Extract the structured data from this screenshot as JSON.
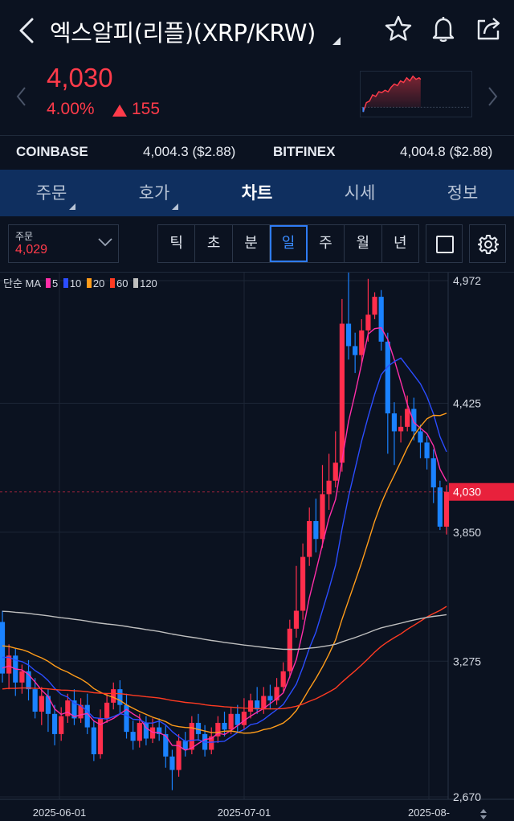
{
  "header": {
    "title": "엑스알피(리플)(XRP/KRW)",
    "icons": [
      "back-icon",
      "star-icon",
      "bell-icon",
      "share-icon"
    ]
  },
  "price": {
    "current": "4,030",
    "change_pct": "4.00%",
    "change_abs": "155",
    "color": "#ff3b4a"
  },
  "exchanges": [
    {
      "name": "COINBASE",
      "value": "4,004.3 ($2.88)"
    },
    {
      "name": "BITFINEX",
      "value": "4,004.8 ($2.88)"
    }
  ],
  "tabs": [
    {
      "label": "주문",
      "dropdown": true
    },
    {
      "label": "호가",
      "dropdown": true
    },
    {
      "label": "차트",
      "active": true
    },
    {
      "label": "시세"
    },
    {
      "label": "정보"
    }
  ],
  "toolbar": {
    "order_label": "주문",
    "order_value": "4,029",
    "periods": [
      "틱",
      "초",
      "분",
      "일",
      "주",
      "월",
      "년"
    ],
    "active_period": "일"
  },
  "chart_data": {
    "type": "candlestick",
    "legend_prefix": "단순 MA",
    "ma_series": [
      {
        "name": "5",
        "color": "#ff2ea8"
      },
      {
        "name": "10",
        "color": "#2b4dff"
      },
      {
        "name": "20",
        "color": "#ff9c1a"
      },
      {
        "name": "60",
        "color": "#ff3b22"
      },
      {
        "name": "120",
        "color": "#bfbfbf"
      }
    ],
    "y_ticks": [
      "4,972",
      "4,425",
      "3,850",
      "3,275",
      "2,670"
    ],
    "y_tick_values": [
      4972,
      4425,
      3850,
      3275,
      2670
    ],
    "x_ticks": [
      "2025-06-01",
      "2025-07-01",
      "2025-08-"
    ],
    "current_price_label": "4,030",
    "current_price": 4030,
    "ylim": [
      2670,
      5090
    ],
    "candles": [
      [
        3450,
        3220,
        3500,
        3180
      ],
      [
        3220,
        3300,
        3350,
        3150
      ],
      [
        3300,
        3180,
        3330,
        3120
      ],
      [
        3180,
        3230,
        3260,
        3130
      ],
      [
        3230,
        3150,
        3280,
        3100
      ],
      [
        3150,
        3050,
        3200,
        3020
      ],
      [
        3050,
        3120,
        3160,
        2990
      ],
      [
        3120,
        3040,
        3150,
        2960
      ],
      [
        3040,
        2950,
        3080,
        2900
      ],
      [
        2950,
        3030,
        3070,
        2920
      ],
      [
        3030,
        3100,
        3130,
        3000
      ],
      [
        3100,
        3020,
        3150,
        2990
      ],
      [
        3020,
        3080,
        3110,
        3000
      ],
      [
        3080,
        2980,
        3130,
        2950
      ],
      [
        2980,
        2860,
        3010,
        2830
      ],
      [
        2860,
        3020,
        3060,
        2840
      ],
      [
        3020,
        3090,
        3130,
        3000
      ],
      [
        3090,
        3150,
        3180,
        3060
      ],
      [
        3150,
        3080,
        3190,
        3040
      ],
      [
        3080,
        2960,
        3130,
        2930
      ],
      [
        2960,
        2920,
        3010,
        2880
      ],
      [
        2920,
        3000,
        3040,
        2890
      ],
      [
        3000,
        2930,
        3030,
        2900
      ],
      [
        2930,
        2980,
        3020,
        2910
      ],
      [
        2980,
        2950,
        3020,
        2920
      ],
      [
        2950,
        2850,
        2990,
        2800
      ],
      [
        2850,
        2790,
        2880,
        2700
      ],
      [
        2790,
        2920,
        2950,
        2760
      ],
      [
        2920,
        2880,
        2960,
        2850
      ],
      [
        2880,
        3000,
        3030,
        2860
      ],
      [
        3000,
        2950,
        3040,
        2920
      ],
      [
        2950,
        2880,
        2990,
        2850
      ],
      [
        2880,
        2940,
        2980,
        2860
      ],
      [
        2940,
        3000,
        3030,
        2910
      ],
      [
        3000,
        2970,
        3050,
        2940
      ],
      [
        2970,
        3040,
        3070,
        2950
      ],
      [
        3040,
        2990,
        3080,
        2960
      ],
      [
        2990,
        3050,
        3110,
        2970
      ],
      [
        3050,
        3100,
        3130,
        3020
      ],
      [
        3100,
        3060,
        3160,
        3040
      ],
      [
        3060,
        3120,
        3160,
        3040
      ],
      [
        3120,
        3100,
        3170,
        3060
      ],
      [
        3100,
        3160,
        3200,
        3080
      ],
      [
        3160,
        3230,
        3270,
        3140
      ],
      [
        3230,
        3420,
        3460,
        3200
      ],
      [
        3420,
        3500,
        3700,
        3380
      ],
      [
        3500,
        3740,
        3800,
        3460
      ],
      [
        3740,
        3900,
        3960,
        3700
      ],
      [
        3900,
        3820,
        4000,
        3760
      ],
      [
        3820,
        4020,
        4150,
        3780
      ],
      [
        4020,
        4080,
        4200,
        3950
      ],
      [
        4080,
        4160,
        4300,
        4050
      ],
      [
        4160,
        4780,
        4890,
        4120
      ],
      [
        4780,
        4680,
        5060,
        4620
      ],
      [
        4680,
        4640,
        4740,
        4560
      ],
      [
        4640,
        4750,
        4800,
        4600
      ],
      [
        4750,
        4820,
        4980,
        4700
      ],
      [
        4820,
        4900,
        4920,
        4800
      ],
      [
        4900,
        4700,
        4930,
        4660
      ],
      [
        4700,
        4380,
        4740,
        4200
      ],
      [
        4380,
        4300,
        4430,
        4150
      ],
      [
        4300,
        4320,
        4370,
        4250
      ],
      [
        4320,
        4400,
        4460,
        4300
      ],
      [
        4400,
        4300,
        4450,
        4260
      ],
      [
        4300,
        4250,
        4330,
        4180
      ],
      [
        4250,
        4180,
        4280,
        4130
      ],
      [
        4180,
        4050,
        4220,
        3980
      ],
      [
        4050,
        3875,
        4080,
        3860
      ],
      [
        3875,
        4030,
        4060,
        3840
      ]
    ]
  }
}
